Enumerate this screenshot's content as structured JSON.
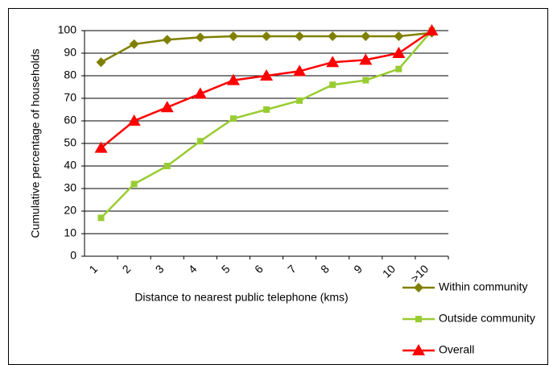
{
  "chart_data": {
    "type": "line",
    "x_label": "Distance to nearest public telephone (kms)",
    "y_label": "Cumulative percentage of households",
    "categories": [
      "1",
      "2",
      "3",
      "4",
      "5",
      "6",
      "7",
      "8",
      "9",
      "10",
      "˃10"
    ],
    "series": [
      {
        "name": "Within community",
        "color": "#808000",
        "marker": "diamond",
        "values": [
          86,
          94,
          96,
          97,
          97.5,
          97.5,
          97.5,
          97.5,
          97.5,
          97.5,
          99
        ]
      },
      {
        "name": "Outside community",
        "color": "#99cc33",
        "marker": "square",
        "values": [
          17,
          32,
          40,
          51,
          61,
          65,
          69,
          76,
          78,
          83,
          100
        ]
      },
      {
        "name": "Overall",
        "color": "#ff0000",
        "marker": "triangle",
        "values": [
          48,
          60,
          66,
          72,
          78,
          80,
          82,
          86,
          87,
          90,
          100
        ]
      }
    ],
    "ylim": [
      0,
      100
    ],
    "yticks": [
      0,
      10,
      20,
      30,
      40,
      50,
      60,
      70,
      80,
      90,
      100
    ],
    "grid": true,
    "legend": "bottom-right"
  }
}
